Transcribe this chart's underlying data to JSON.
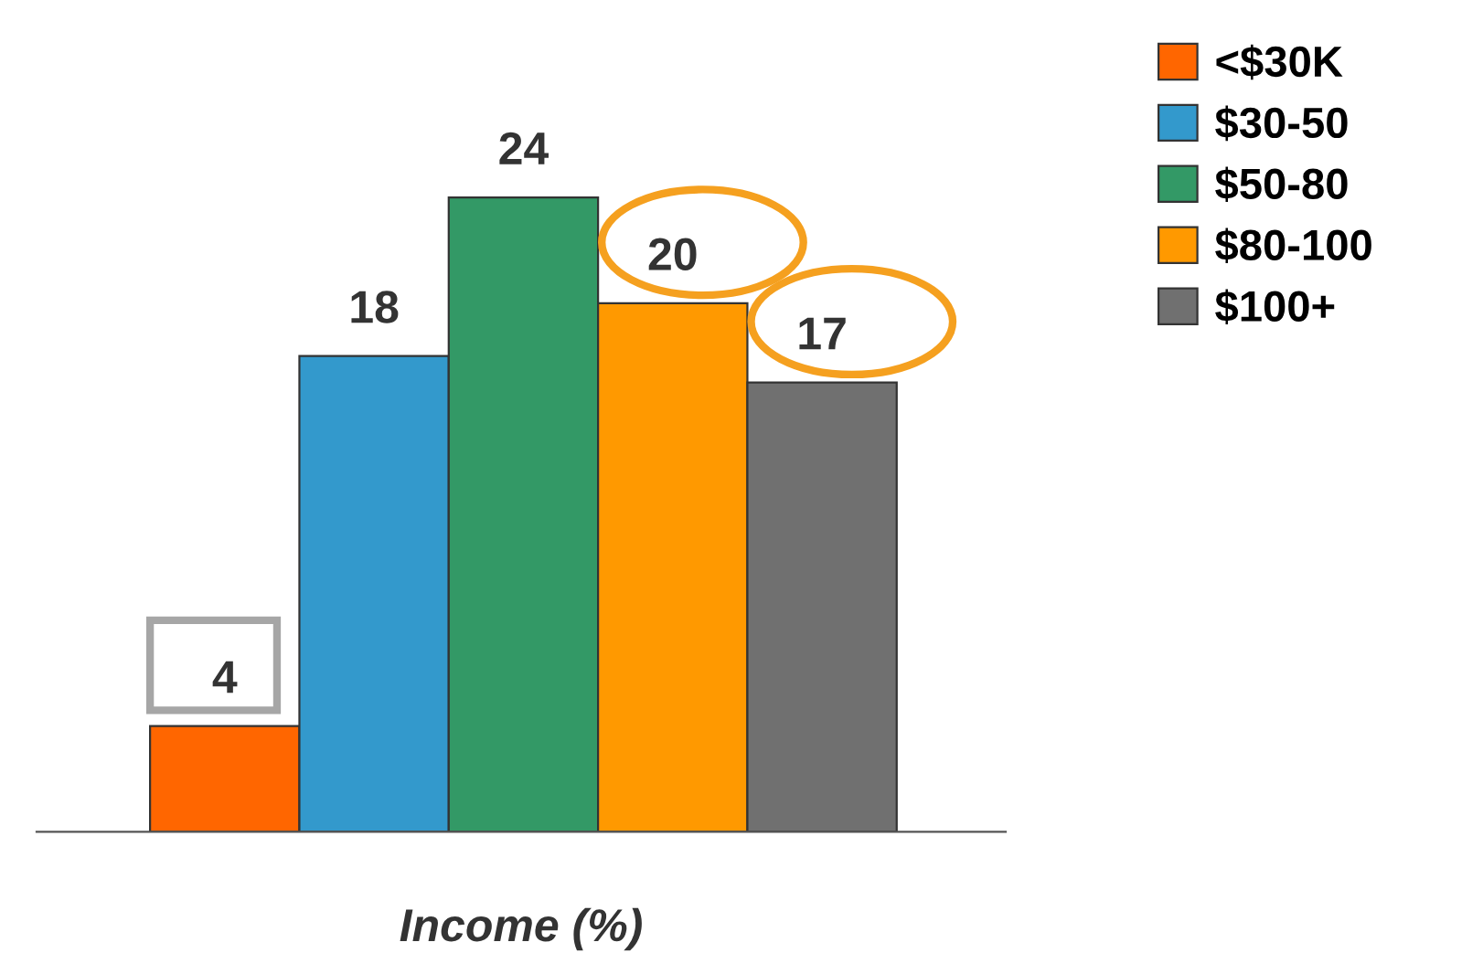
{
  "chart_data": {
    "type": "bar",
    "xlabel": "Income (%)",
    "categories": [
      null
    ],
    "series": [
      {
        "name": "<$30K",
        "color": "#ff6600",
        "values": [
          4
        ]
      },
      {
        "name": "$30-50",
        "color": "#3399cc",
        "values": [
          18
        ]
      },
      {
        "name": "$50-80",
        "color": "#339966",
        "values": [
          24
        ]
      },
      {
        "name": "$80-100",
        "color": "#ff9900",
        "values": [
          20
        ]
      },
      {
        "name": "$100+",
        "color": "#707070",
        "values": [
          17
        ]
      }
    ],
    "data_labels": true,
    "legend": "top right"
  }
}
